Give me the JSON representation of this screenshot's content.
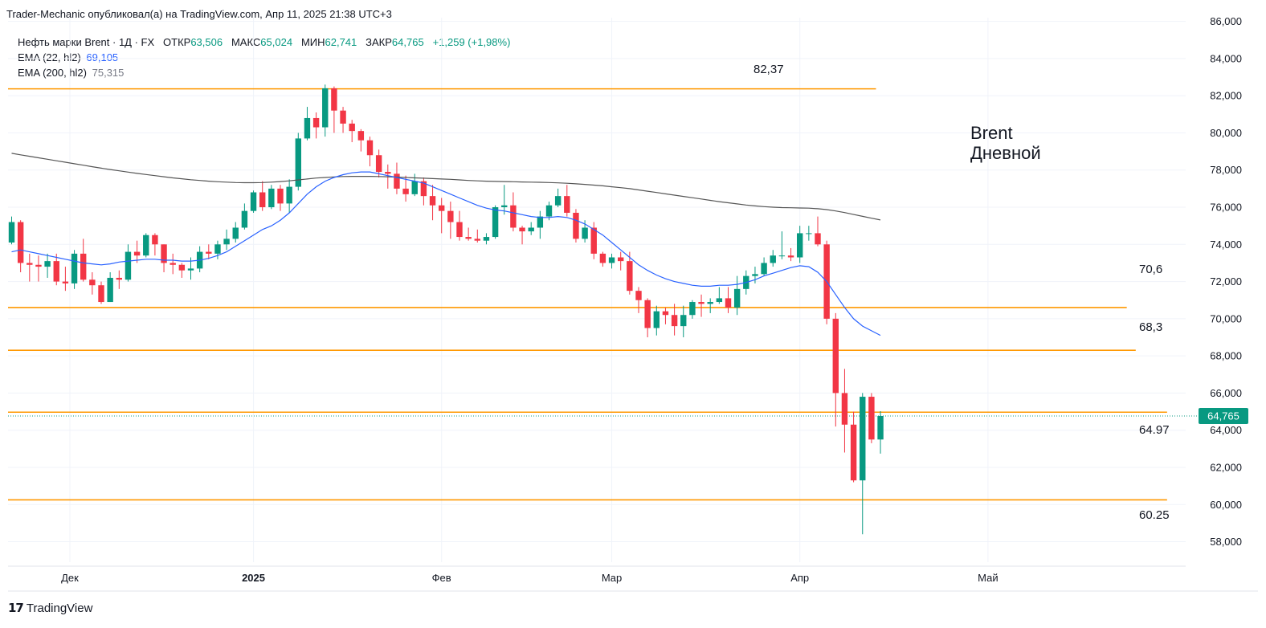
{
  "header": {
    "text": "Trader-Mechanic опубликовал(а) на TradingView.com, Апр 11, 2025 21:38 UTC+3"
  },
  "legend": {
    "symbol": "Нефть марки Brent · 1Д · FX",
    "open_label": "ОТКР",
    "open": "63,506",
    "high_label": "МАКС",
    "high": "65,024",
    "low_label": "МИН",
    "low": "62,741",
    "close_label": "ЗАКР",
    "close": "64,765",
    "change": "+1,259 (+1,98%)",
    "ema1_label": "EMA (22, hl2)",
    "ema1_value": "69,105",
    "ema2_label": "EMA (200, hl2)",
    "ema2_value": "75,315"
  },
  "annotation": {
    "line1": "Brent",
    "line2": "Дневной"
  },
  "footer": {
    "brand": "TradingView"
  },
  "colors": {
    "up": "#089981",
    "down": "#f23645",
    "level": "#ff9800",
    "ema22": "#2962ff",
    "ema200": "#555555",
    "price_tag": "#089981"
  },
  "chart_data": {
    "type": "candlestick",
    "x_ticks": [
      {
        "label": "Дек",
        "bold": false,
        "i": 6.5
      },
      {
        "label": "2025",
        "bold": true,
        "i": 27
      },
      {
        "label": "Фев",
        "bold": false,
        "i": 48
      },
      {
        "label": "Мар",
        "bold": false,
        "i": 67
      },
      {
        "label": "Апр",
        "bold": false,
        "i": 88
      },
      {
        "label": "Май",
        "bold": false,
        "i": 109
      }
    ],
    "y_ticks": [
      58,
      60,
      62,
      64,
      66,
      68,
      70,
      72,
      74,
      76,
      78,
      80,
      82,
      84,
      86
    ],
    "y_tick_labels": [
      "58,000",
      "60,000",
      "62,000",
      "64,000",
      "66,000",
      "68,000",
      "70,000",
      "72,000",
      "74,000",
      "76,000",
      "78,000",
      "80,000",
      "82,000",
      "84,000",
      "86,000"
    ],
    "ylim": [
      56.9,
      86.2
    ],
    "last_price": {
      "value": 64.765,
      "label": "64,765"
    },
    "levels": [
      {
        "value": 82.37,
        "label": "82,37",
        "i_end": 96.5
      },
      {
        "value": 70.6,
        "label": "70,6",
        "i_end": 124.5
      },
      {
        "value": 68.3,
        "label": "68,3",
        "i_end": 125.5
      },
      {
        "value": 64.97,
        "label": "64.97",
        "i_end": 129
      },
      {
        "value": 60.25,
        "label": "60.25",
        "i_end": 129
      }
    ],
    "candles": [
      [
        74.1,
        75.2,
        75.5,
        74.0
      ],
      [
        75.2,
        73.0,
        75.3,
        72.5
      ],
      [
        73.0,
        72.9,
        73.5,
        72.0
      ],
      [
        72.9,
        72.8,
        73.4,
        72.0
      ],
      [
        72.8,
        73.1,
        73.5,
        72.2
      ],
      [
        73.1,
        72.0,
        73.5,
        71.8
      ],
      [
        72.0,
        71.9,
        72.8,
        71.5
      ],
      [
        71.9,
        73.5,
        73.7,
        71.6
      ],
      [
        73.5,
        72.1,
        74.3,
        72.0
      ],
      [
        72.1,
        71.8,
        72.5,
        71.3
      ],
      [
        71.8,
        70.9,
        72.0,
        70.8
      ],
      [
        70.9,
        72.2,
        72.5,
        70.9
      ],
      [
        72.2,
        72.1,
        72.6,
        71.6
      ],
      [
        72.1,
        73.6,
        74.0,
        72.0
      ],
      [
        73.6,
        73.4,
        74.2,
        73.0
      ],
      [
        73.4,
        74.5,
        74.6,
        73.3
      ],
      [
        74.5,
        74.0,
        74.6,
        73.4
      ],
      [
        74.0,
        73.0,
        74.0,
        72.5
      ],
      [
        73.0,
        72.9,
        73.5,
        72.4
      ],
      [
        72.9,
        72.6,
        73.0,
        72.2
      ],
      [
        72.6,
        72.7,
        73.3,
        72.1
      ],
      [
        72.7,
        73.6,
        73.9,
        72.5
      ],
      [
        73.6,
        73.5,
        74.0,
        73.2
      ],
      [
        73.5,
        74.0,
        74.2,
        73.2
      ],
      [
        74.0,
        74.3,
        74.8,
        73.7
      ],
      [
        74.3,
        74.9,
        75.2,
        74.1
      ],
      [
        74.9,
        75.8,
        76.2,
        74.8
      ],
      [
        75.8,
        76.8,
        76.9,
        75.7
      ],
      [
        76.8,
        76.0,
        77.4,
        75.8
      ],
      [
        76.0,
        77.0,
        77.2,
        75.9
      ],
      [
        77.0,
        76.2,
        77.2,
        75.8
      ],
      [
        76.2,
        77.1,
        77.5,
        75.7
      ],
      [
        77.1,
        79.7,
        80.0,
        76.9
      ],
      [
        79.7,
        80.8,
        81.4,
        79.6
      ],
      [
        80.8,
        80.3,
        81.1,
        79.7
      ],
      [
        80.3,
        82.4,
        82.6,
        79.8
      ],
      [
        82.4,
        81.2,
        82.5,
        80.0
      ],
      [
        81.2,
        80.5,
        81.4,
        80.0
      ],
      [
        80.5,
        80.1,
        80.7,
        79.5
      ],
      [
        80.1,
        79.6,
        80.2,
        79.0
      ],
      [
        79.6,
        78.8,
        79.8,
        78.2
      ],
      [
        78.8,
        77.9,
        79.1,
        77.6
      ],
      [
        77.9,
        77.8,
        78.3,
        77.0
      ],
      [
        77.8,
        77.0,
        78.4,
        76.7
      ],
      [
        77.0,
        76.7,
        77.7,
        76.3
      ],
      [
        76.7,
        77.4,
        77.8,
        76.6
      ],
      [
        77.4,
        76.6,
        77.6,
        76.1
      ],
      [
        76.6,
        76.1,
        77.2,
        75.3
      ],
      [
        76.1,
        75.8,
        76.5,
        74.6
      ],
      [
        75.8,
        75.2,
        76.3,
        74.3
      ],
      [
        75.2,
        74.4,
        75.8,
        74.2
      ],
      [
        74.4,
        74.3,
        74.9,
        74.2
      ],
      [
        74.3,
        74.2,
        74.8,
        74.1
      ],
      [
        74.2,
        74.4,
        74.6,
        74.0
      ],
      [
        74.4,
        76.0,
        76.1,
        74.3
      ],
      [
        76.0,
        76.1,
        77.2,
        75.6
      ],
      [
        76.1,
        74.9,
        76.8,
        74.7
      ],
      [
        74.9,
        74.7,
        75.0,
        74.0
      ],
      [
        74.7,
        74.9,
        75.2,
        74.5
      ],
      [
        74.9,
        75.5,
        75.8,
        74.3
      ],
      [
        75.5,
        76.1,
        76.3,
        75.3
      ],
      [
        76.1,
        76.6,
        77.0,
        76.0
      ],
      [
        76.6,
        75.7,
        77.2,
        75.5
      ],
      [
        75.7,
        74.3,
        75.9,
        74.1
      ],
      [
        74.3,
        74.9,
        75.3,
        74.1
      ],
      [
        74.9,
        73.5,
        75.2,
        73.2
      ],
      [
        73.5,
        73.0,
        73.6,
        72.8
      ],
      [
        73.0,
        73.3,
        73.5,
        72.7
      ],
      [
        73.3,
        73.1,
        73.6,
        72.6
      ],
      [
        73.1,
        71.5,
        73.6,
        71.3
      ],
      [
        71.5,
        71.0,
        71.7,
        70.3
      ],
      [
        71.0,
        69.5,
        71.1,
        69.0
      ],
      [
        69.5,
        70.4,
        70.7,
        69.1
      ],
      [
        70.4,
        70.2,
        70.6,
        69.7
      ],
      [
        70.2,
        69.6,
        70.8,
        69.1
      ],
      [
        69.6,
        70.2,
        70.7,
        69.0
      ],
      [
        70.2,
        70.9,
        71.0,
        70.0
      ],
      [
        70.9,
        70.8,
        71.3,
        70.1
      ],
      [
        70.8,
        70.9,
        71.1,
        70.3
      ],
      [
        70.9,
        71.1,
        71.7,
        70.8
      ],
      [
        71.1,
        70.6,
        71.7,
        70.3
      ],
      [
        70.6,
        71.6,
        72.3,
        70.2
      ],
      [
        71.6,
        72.3,
        72.6,
        71.3
      ],
      [
        72.3,
        72.4,
        72.8,
        71.9
      ],
      [
        72.4,
        73.0,
        73.3,
        72.3
      ],
      [
        73.0,
        73.4,
        73.7,
        72.8
      ],
      [
        73.4,
        73.4,
        74.7,
        73.2
      ],
      [
        73.4,
        73.3,
        73.8,
        73.1
      ],
      [
        73.3,
        74.6,
        75.0,
        73.0
      ],
      [
        74.6,
        74.6,
        75.0,
        74.2
      ],
      [
        74.6,
        74.0,
        75.5,
        73.9
      ],
      [
        74.0,
        70.0,
        74.2,
        69.7
      ],
      [
        70.0,
        66.0,
        70.3,
        64.2
      ],
      [
        66.0,
        64.3,
        67.3,
        62.8
      ],
      [
        64.3,
        61.3,
        65.0,
        61.2
      ],
      [
        61.3,
        65.8,
        66.0,
        58.4
      ],
      [
        65.8,
        63.5,
        66.0,
        63.3
      ],
      [
        63.5,
        64.765,
        65.024,
        62.741
      ]
    ],
    "ema22": [
      73.6,
      73.7,
      73.6,
      73.5,
      73.4,
      73.3,
      73.2,
      73.1,
      73.0,
      72.95,
      72.9,
      72.95,
      73.05,
      73.1,
      73.15,
      73.2,
      73.2,
      73.15,
      73.15,
      73.1,
      73.1,
      73.15,
      73.25,
      73.4,
      73.6,
      73.9,
      74.2,
      74.5,
      74.8,
      75.0,
      75.3,
      75.7,
      76.2,
      76.7,
      77.1,
      77.4,
      77.6,
      77.75,
      77.85,
      77.9,
      77.9,
      77.8,
      77.7,
      77.6,
      77.5,
      77.4,
      77.3,
      77.1,
      76.9,
      76.7,
      76.5,
      76.3,
      76.1,
      75.95,
      75.85,
      75.8,
      75.7,
      75.6,
      75.5,
      75.45,
      75.45,
      75.5,
      75.45,
      75.3,
      75.1,
      74.8,
      74.5,
      74.1,
      73.7,
      73.3,
      72.9,
      72.6,
      72.35,
      72.15,
      72.0,
      71.9,
      71.8,
      71.75,
      71.75,
      71.8,
      71.8,
      71.85,
      71.95,
      72.1,
      72.3,
      72.45,
      72.6,
      72.75,
      72.85,
      72.8,
      72.5,
      72.0,
      71.3,
      70.6,
      70.0,
      69.6,
      69.35,
      69.105
    ],
    "ema200": [
      78.9,
      78.82,
      78.74,
      78.66,
      78.58,
      78.5,
      78.42,
      78.34,
      78.26,
      78.18,
      78.1,
      78.03,
      77.96,
      77.89,
      77.82,
      77.76,
      77.7,
      77.64,
      77.58,
      77.53,
      77.48,
      77.44,
      77.4,
      77.37,
      77.35,
      77.33,
      77.32,
      77.32,
      77.33,
      77.35,
      77.38,
      77.42,
      77.47,
      77.52,
      77.57,
      77.6,
      77.63,
      77.65,
      77.66,
      77.66,
      77.66,
      77.65,
      77.64,
      77.62,
      77.6,
      77.58,
      77.56,
      77.54,
      77.52,
      77.5,
      77.47,
      77.44,
      77.42,
      77.4,
      77.39,
      77.38,
      77.37,
      77.36,
      77.35,
      77.34,
      77.33,
      77.31,
      77.29,
      77.26,
      77.23,
      77.19,
      77.15,
      77.1,
      77.05,
      77.0,
      76.93,
      76.86,
      76.79,
      76.72,
      76.65,
      76.58,
      76.51,
      76.44,
      76.37,
      76.3,
      76.24,
      76.18,
      76.12,
      76.07,
      76.03,
      76.0,
      75.98,
      75.97,
      75.96,
      75.95,
      75.92,
      75.87,
      75.8,
      75.71,
      75.61,
      75.51,
      75.41,
      75.315
    ]
  }
}
